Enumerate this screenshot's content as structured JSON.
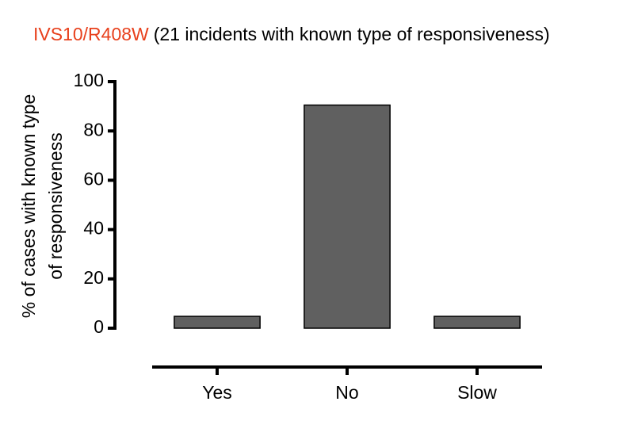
{
  "chart_data": {
    "type": "bar",
    "title": "IVS10/R408W",
    "title_color": "#e8401c",
    "subtitle": "(21 incidents with known type of responsiveness)",
    "ylabel": [
      "% of cases with  known type",
      "of responsiveness"
    ],
    "categories": [
      "Yes",
      "No",
      "Slow"
    ],
    "values": [
      4.8,
      90.5,
      4.8
    ],
    "color": "#606060",
    "ylim": [
      0,
      100
    ],
    "yticks": [
      0,
      20,
      40,
      60,
      80,
      100
    ],
    "grid": false
  }
}
